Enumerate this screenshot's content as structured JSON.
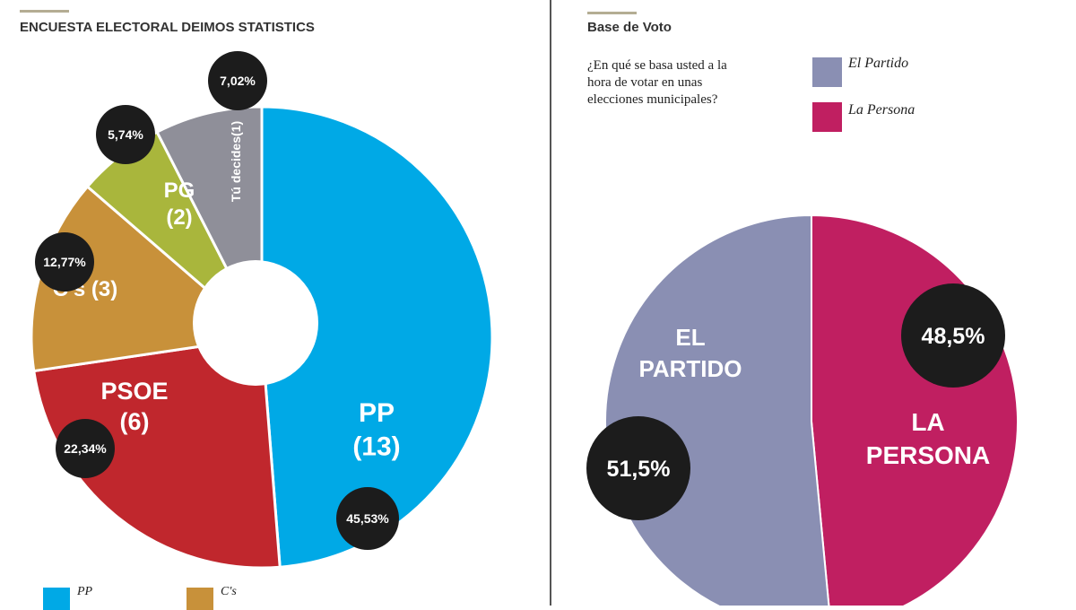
{
  "left": {
    "title": "ENCUESTA ELECTORAL DEIMOS STATISTICS"
  },
  "right": {
    "title": "Base de Voto",
    "question": "¿En qué se basa usted a la hora de votar en unas elecciones municipales?"
  },
  "chart_data": [
    {
      "type": "pie",
      "donut": true,
      "title": "ENCUESTA ELECTORAL DEIMOS STATISTICS",
      "slices": [
        {
          "label": "PP",
          "seats": "(13)",
          "value": 45.53,
          "value_label": "45,53%",
          "color": "#00a9e6"
        },
        {
          "label": "PSOE",
          "seats": "(6)",
          "value": 22.34,
          "value_label": "22,34%",
          "color": "#c0272d"
        },
        {
          "label": "C's",
          "seats": "(3)",
          "value": 12.77,
          "value_label": "12,77%",
          "color": "#c8913a"
        },
        {
          "label": "PG",
          "seats": "(2)",
          "value": 5.74,
          "value_label": "5,74%",
          "color": "#a9b63c"
        },
        {
          "label": "Tú decides",
          "seats": "(1)",
          "value": 7.02,
          "value_label": "7,02%",
          "color": "#8f8f99"
        }
      ],
      "legend": [
        {
          "label": "PP",
          "color": "#00a9e6"
        },
        {
          "label": "C's",
          "color": "#c8913a"
        }
      ],
      "legend_placement": "bottom"
    },
    {
      "type": "pie",
      "title": "Base de Voto",
      "slices": [
        {
          "label": "EL PARTIDO",
          "value": 51.5,
          "value_label": "51,5%",
          "color": "#8a8fb3"
        },
        {
          "label": "LA PERSONA",
          "value": 48.5,
          "value_label": "48,5%",
          "color": "#c01f61"
        }
      ],
      "legend": [
        {
          "label": "El Partido",
          "color": "#8a8fb3"
        },
        {
          "label": "La Persona",
          "color": "#c01f61"
        }
      ],
      "legend_placement": "top-right"
    }
  ]
}
